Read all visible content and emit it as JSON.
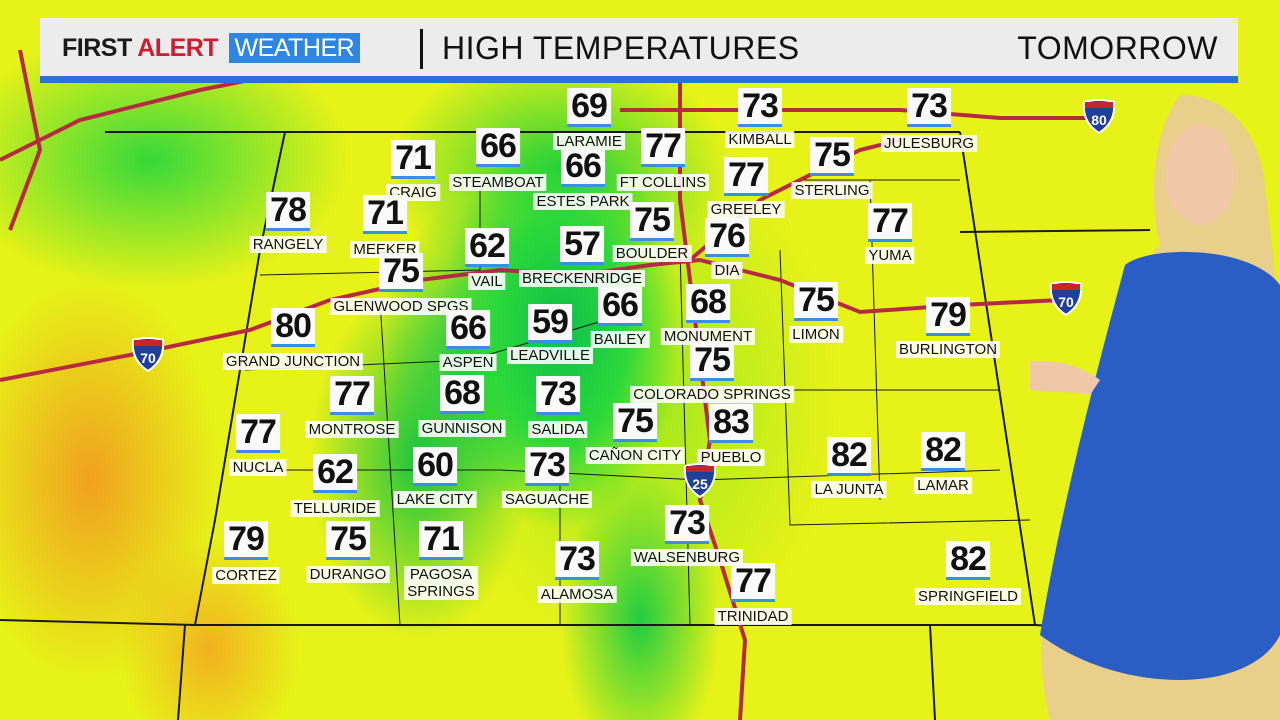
{
  "header": {
    "brand_first": "FIRST",
    "brand_alert": "ALERT",
    "brand_weather": "WEATHER",
    "title": "HIGH TEMPERATURES",
    "period": "TOMORROW"
  },
  "colors": {
    "brand_red": "#d01c30",
    "brand_blue": "#2f86e0",
    "warm": "#e6f218",
    "cool": "#0fbf4a",
    "hot": "#f0a020",
    "roads": "#c0304a"
  },
  "interstates": [
    "80",
    "70",
    "70",
    "25"
  ],
  "cities": [
    {
      "name": "LARAMIE",
      "temp": "69"
    },
    {
      "name": "KIMBALL",
      "temp": "73"
    },
    {
      "name": "JULESBURG",
      "temp": "73"
    },
    {
      "name": "CRAIG",
      "temp": "71"
    },
    {
      "name": "STEAMBOAT",
      "temp": "66"
    },
    {
      "name": "ESTES PARK",
      "temp": "66"
    },
    {
      "name": "FT COLLINS",
      "temp": "77"
    },
    {
      "name": "GREELEY",
      "temp": "77"
    },
    {
      "name": "STERLING",
      "temp": "75"
    },
    {
      "name": "RANGELY",
      "temp": "78"
    },
    {
      "name": "MEEKER",
      "temp": "71"
    },
    {
      "name": "VAIL",
      "temp": "62"
    },
    {
      "name": "BRECKENRIDGE",
      "temp": "57"
    },
    {
      "name": "BOULDER",
      "temp": "75"
    },
    {
      "name": "DIA",
      "temp": "76"
    },
    {
      "name": "YUMA",
      "temp": "77"
    },
    {
      "name": "GLENWOOD SPGS",
      "temp": "75"
    },
    {
      "name": "GRAND JUNCTION",
      "temp": "80"
    },
    {
      "name": "ASPEN",
      "temp": "66"
    },
    {
      "name": "LEADVILLE",
      "temp": "59"
    },
    {
      "name": "BAILEY",
      "temp": "66"
    },
    {
      "name": "MONUMENT",
      "temp": "68"
    },
    {
      "name": "LIMON",
      "temp": "75"
    },
    {
      "name": "BURLINGTON",
      "temp": "79"
    },
    {
      "name": "COLORADO SPRINGS",
      "temp": "75"
    },
    {
      "name": "MONTROSE",
      "temp": "77"
    },
    {
      "name": "GUNNISON",
      "temp": "68"
    },
    {
      "name": "SALIDA",
      "temp": "73"
    },
    {
      "name": "CAÑON CITY",
      "temp": "75"
    },
    {
      "name": "PUEBLO",
      "temp": "83"
    },
    {
      "name": "NUCLA",
      "temp": "77"
    },
    {
      "name": "TELLURIDE",
      "temp": "62"
    },
    {
      "name": "LAKE CITY",
      "temp": "60"
    },
    {
      "name": "SAGUACHE",
      "temp": "73"
    },
    {
      "name": "LA JUNTA",
      "temp": "82"
    },
    {
      "name": "LAMAR",
      "temp": "82"
    },
    {
      "name": "WALSENBURG",
      "temp": "73"
    },
    {
      "name": "CORTEZ",
      "temp": "79"
    },
    {
      "name": "DURANGO",
      "temp": "75"
    },
    {
      "name": "PAGOSA\nSPRINGS",
      "temp": "71"
    },
    {
      "name": "ALAMOSA",
      "temp": "73"
    },
    {
      "name": "TRINIDAD",
      "temp": "77"
    },
    {
      "name": "SPRINGFIELD",
      "temp": "82"
    }
  ]
}
